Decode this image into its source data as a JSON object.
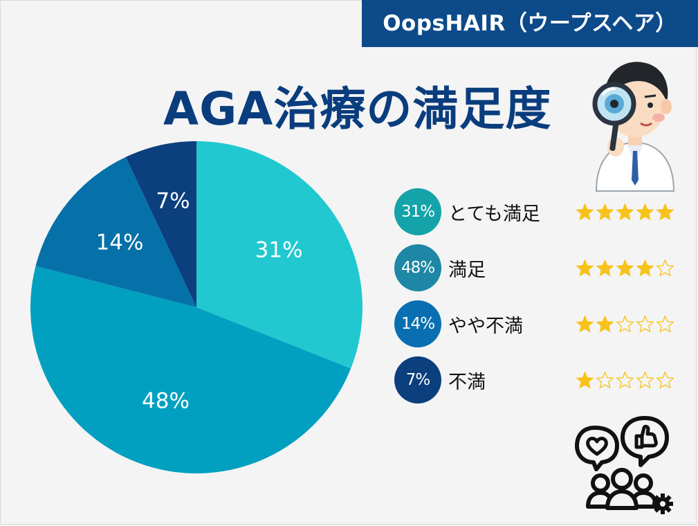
{
  "brand": "OopsHAIR（ウープスヘア）",
  "title": "AGA治療の満足度",
  "chart_data": {
    "type": "pie",
    "title": "AGA治療の満足度",
    "slices": [
      {
        "label": "とても満足",
        "value": 31,
        "display": "31%",
        "color": "#21c8d0",
        "stars": 5
      },
      {
        "label": "満足",
        "value": 48,
        "display": "48%",
        "color": "#02a0c0",
        "stars": 4
      },
      {
        "label": "やや不満",
        "value": 14,
        "display": "14%",
        "color": "#0671a9",
        "stars": 2
      },
      {
        "label": "不満",
        "value": 7,
        "display": "7%",
        "color": "#0b3f7e",
        "stars": 1
      }
    ],
    "legend_position": "right",
    "max_stars": 5
  },
  "legend": [
    {
      "badge": "31%",
      "label": "とても満足",
      "badge_color": "#14a3a8"
    },
    {
      "badge": "48%",
      "label": "満足",
      "badge_color": "#1d87a5"
    },
    {
      "badge": "14%",
      "label": "やや不満",
      "badge_color": "#0a6fb0"
    },
    {
      "badge": "7%",
      "label": "不満",
      "badge_color": "#0b3f7e"
    }
  ],
  "icons": {
    "doctor": "doctor-magnifier-icon",
    "people": "people-feedback-icon",
    "star_filled": "star-filled-icon",
    "star_empty": "star-outline-icon"
  },
  "colors": {
    "brand_bg": "#0c4a8a",
    "title": "#0a3d7e",
    "star": "#f7c21b"
  }
}
